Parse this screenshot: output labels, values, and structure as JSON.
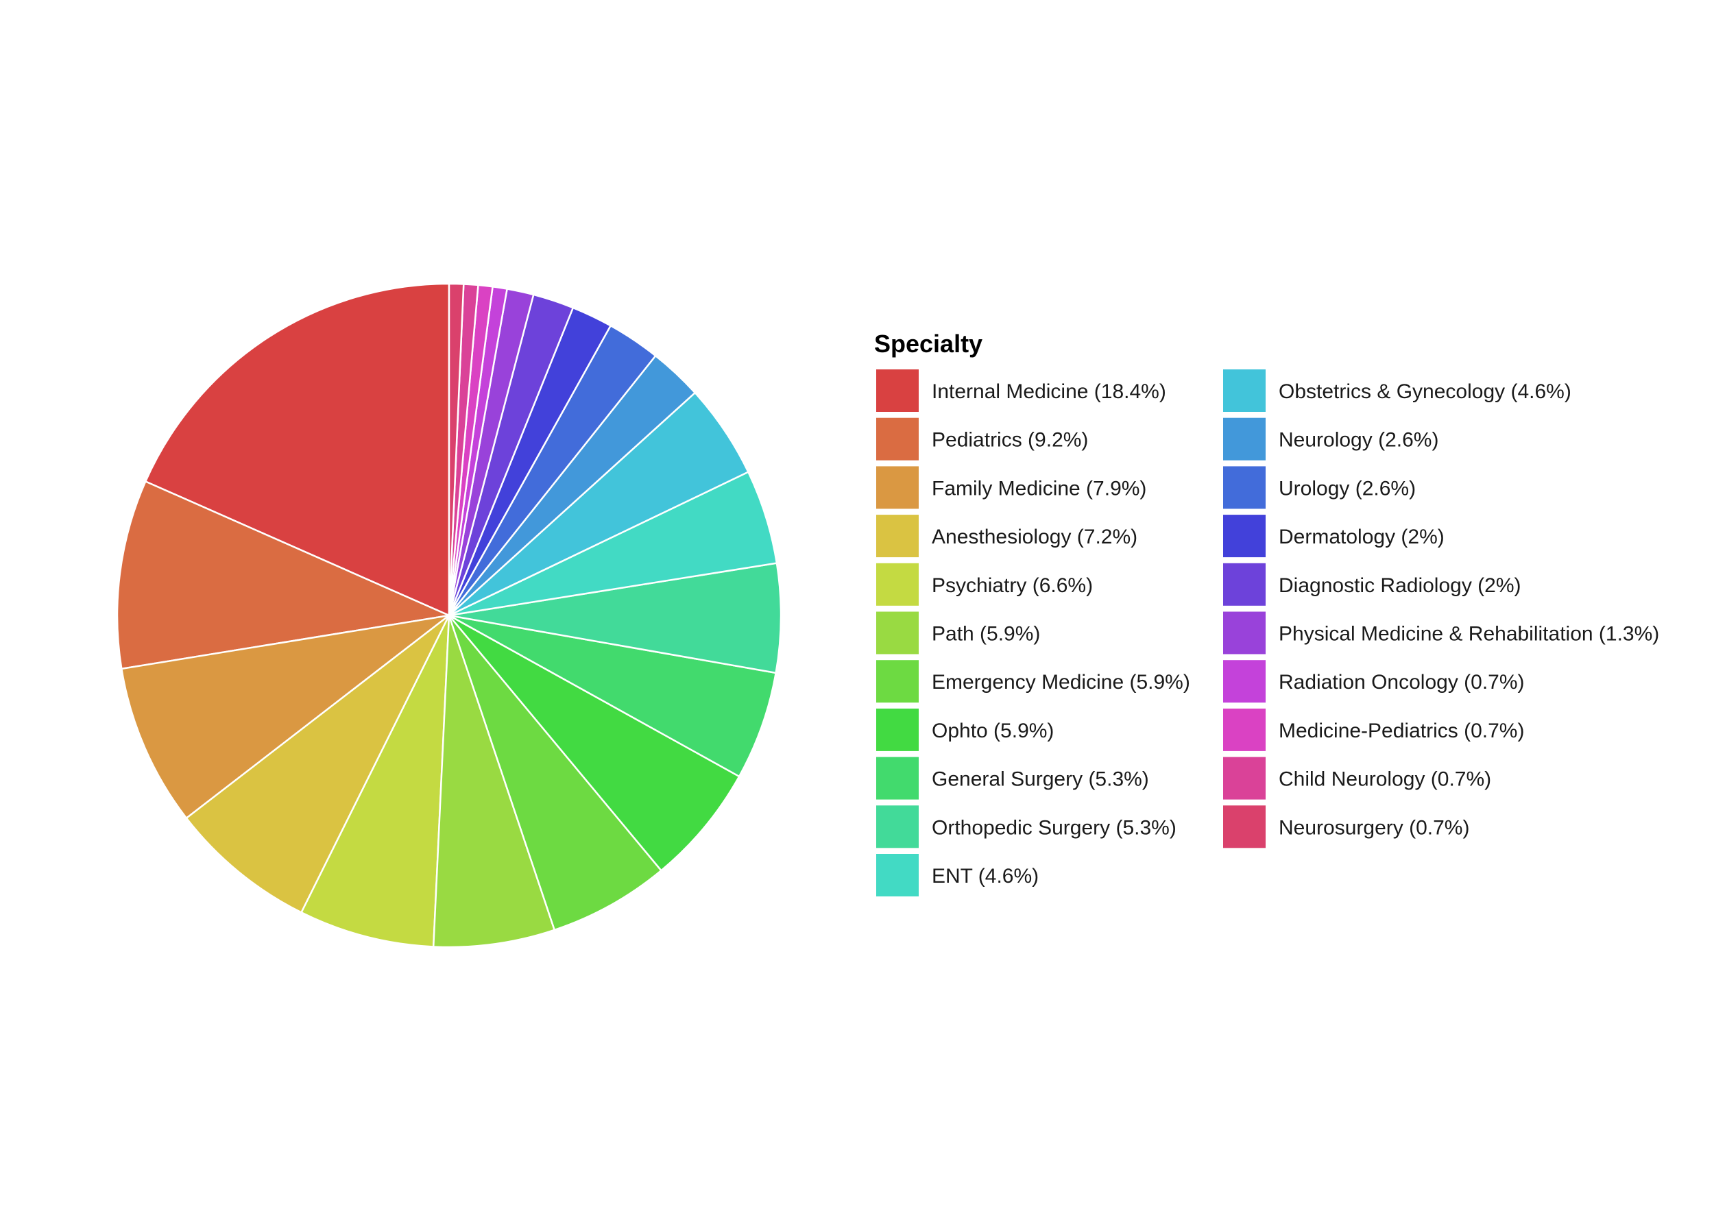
{
  "chart_data": {
    "type": "pie",
    "start": "12 o'clock",
    "direction": "counterclockwise",
    "legend": {
      "title": "Specialty",
      "position": "right",
      "columns": 2
    },
    "slices": [
      {
        "label": "Internal Medicine (18.4%)",
        "category": "Internal Medicine",
        "value": 18.4,
        "color": "#D94141"
      },
      {
        "label": "Pediatrics (9.2%)",
        "category": "Pediatrics",
        "value": 9.2,
        "color": "#DA6C42"
      },
      {
        "label": "Family Medicine (7.9%)",
        "category": "Family Medicine",
        "value": 7.9,
        "color": "#DA9842"
      },
      {
        "label": "Anesthesiology (7.2%)",
        "category": "Anesthesiology",
        "value": 7.2,
        "color": "#DAC342"
      },
      {
        "label": "Psychiatry (6.6%)",
        "category": "Psychiatry",
        "value": 6.6,
        "color": "#C4DA42"
      },
      {
        "label": "Path (5.9%)",
        "category": "Path",
        "value": 5.9,
        "color": "#99DA42"
      },
      {
        "label": "Emergency Medicine (5.9%)",
        "category": "Emergency Medicine",
        "value": 5.9,
        "color": "#6DDA42"
      },
      {
        "label": "Ophto (5.9%)",
        "category": "Ophto",
        "value": 5.9,
        "color": "#42DA42"
      },
      {
        "label": "General Surgery (5.3%)",
        "category": "General Surgery",
        "value": 5.3,
        "color": "#42DA6D"
      },
      {
        "label": "Orthopedic Surgery (5.3%)",
        "category": "Orthopedic Surgery",
        "value": 5.3,
        "color": "#42DA99"
      },
      {
        "label": "ENT (4.6%)",
        "category": "ENT",
        "value": 4.6,
        "color": "#42DAC4"
      },
      {
        "label": "Obstetrics & Gynecology (4.6%)",
        "category": "Obstetrics & Gynecology",
        "value": 4.6,
        "color": "#42C4DA"
      },
      {
        "label": "Neurology (2.6%)",
        "category": "Neurology",
        "value": 2.6,
        "color": "#4298DA"
      },
      {
        "label": "Urology (2.6%)",
        "category": "Urology",
        "value": 2.6,
        "color": "#426CDA"
      },
      {
        "label": "Dermatology (2%)",
        "category": "Dermatology",
        "value": 2.0,
        "color": "#4241DA"
      },
      {
        "label": "Diagnostic Radiology (2%)",
        "category": "Diagnostic Radiology",
        "value": 2.0,
        "color": "#6D42DA"
      },
      {
        "label": "Physical Medicine & Rehabilitation (1.3%)",
        "category": "Physical Medicine & Rehabilitation",
        "value": 1.3,
        "color": "#9942DA"
      },
      {
        "label": "Radiation Oncology (0.7%)",
        "category": "Radiation Oncology",
        "value": 0.7,
        "color": "#C442DA"
      },
      {
        "label": "Medicine-Pediatrics (0.7%)",
        "category": "Medicine-Pediatrics",
        "value": 0.7,
        "color": "#DA42C3"
      },
      {
        "label": "Child Neurology (0.7%)",
        "category": "Child Neurology",
        "value": 0.7,
        "color": "#DA4298"
      },
      {
        "label": "Neurosurgery (0.7%)",
        "category": "Neurosurgery",
        "value": 0.7,
        "color": "#DA416C"
      }
    ]
  }
}
